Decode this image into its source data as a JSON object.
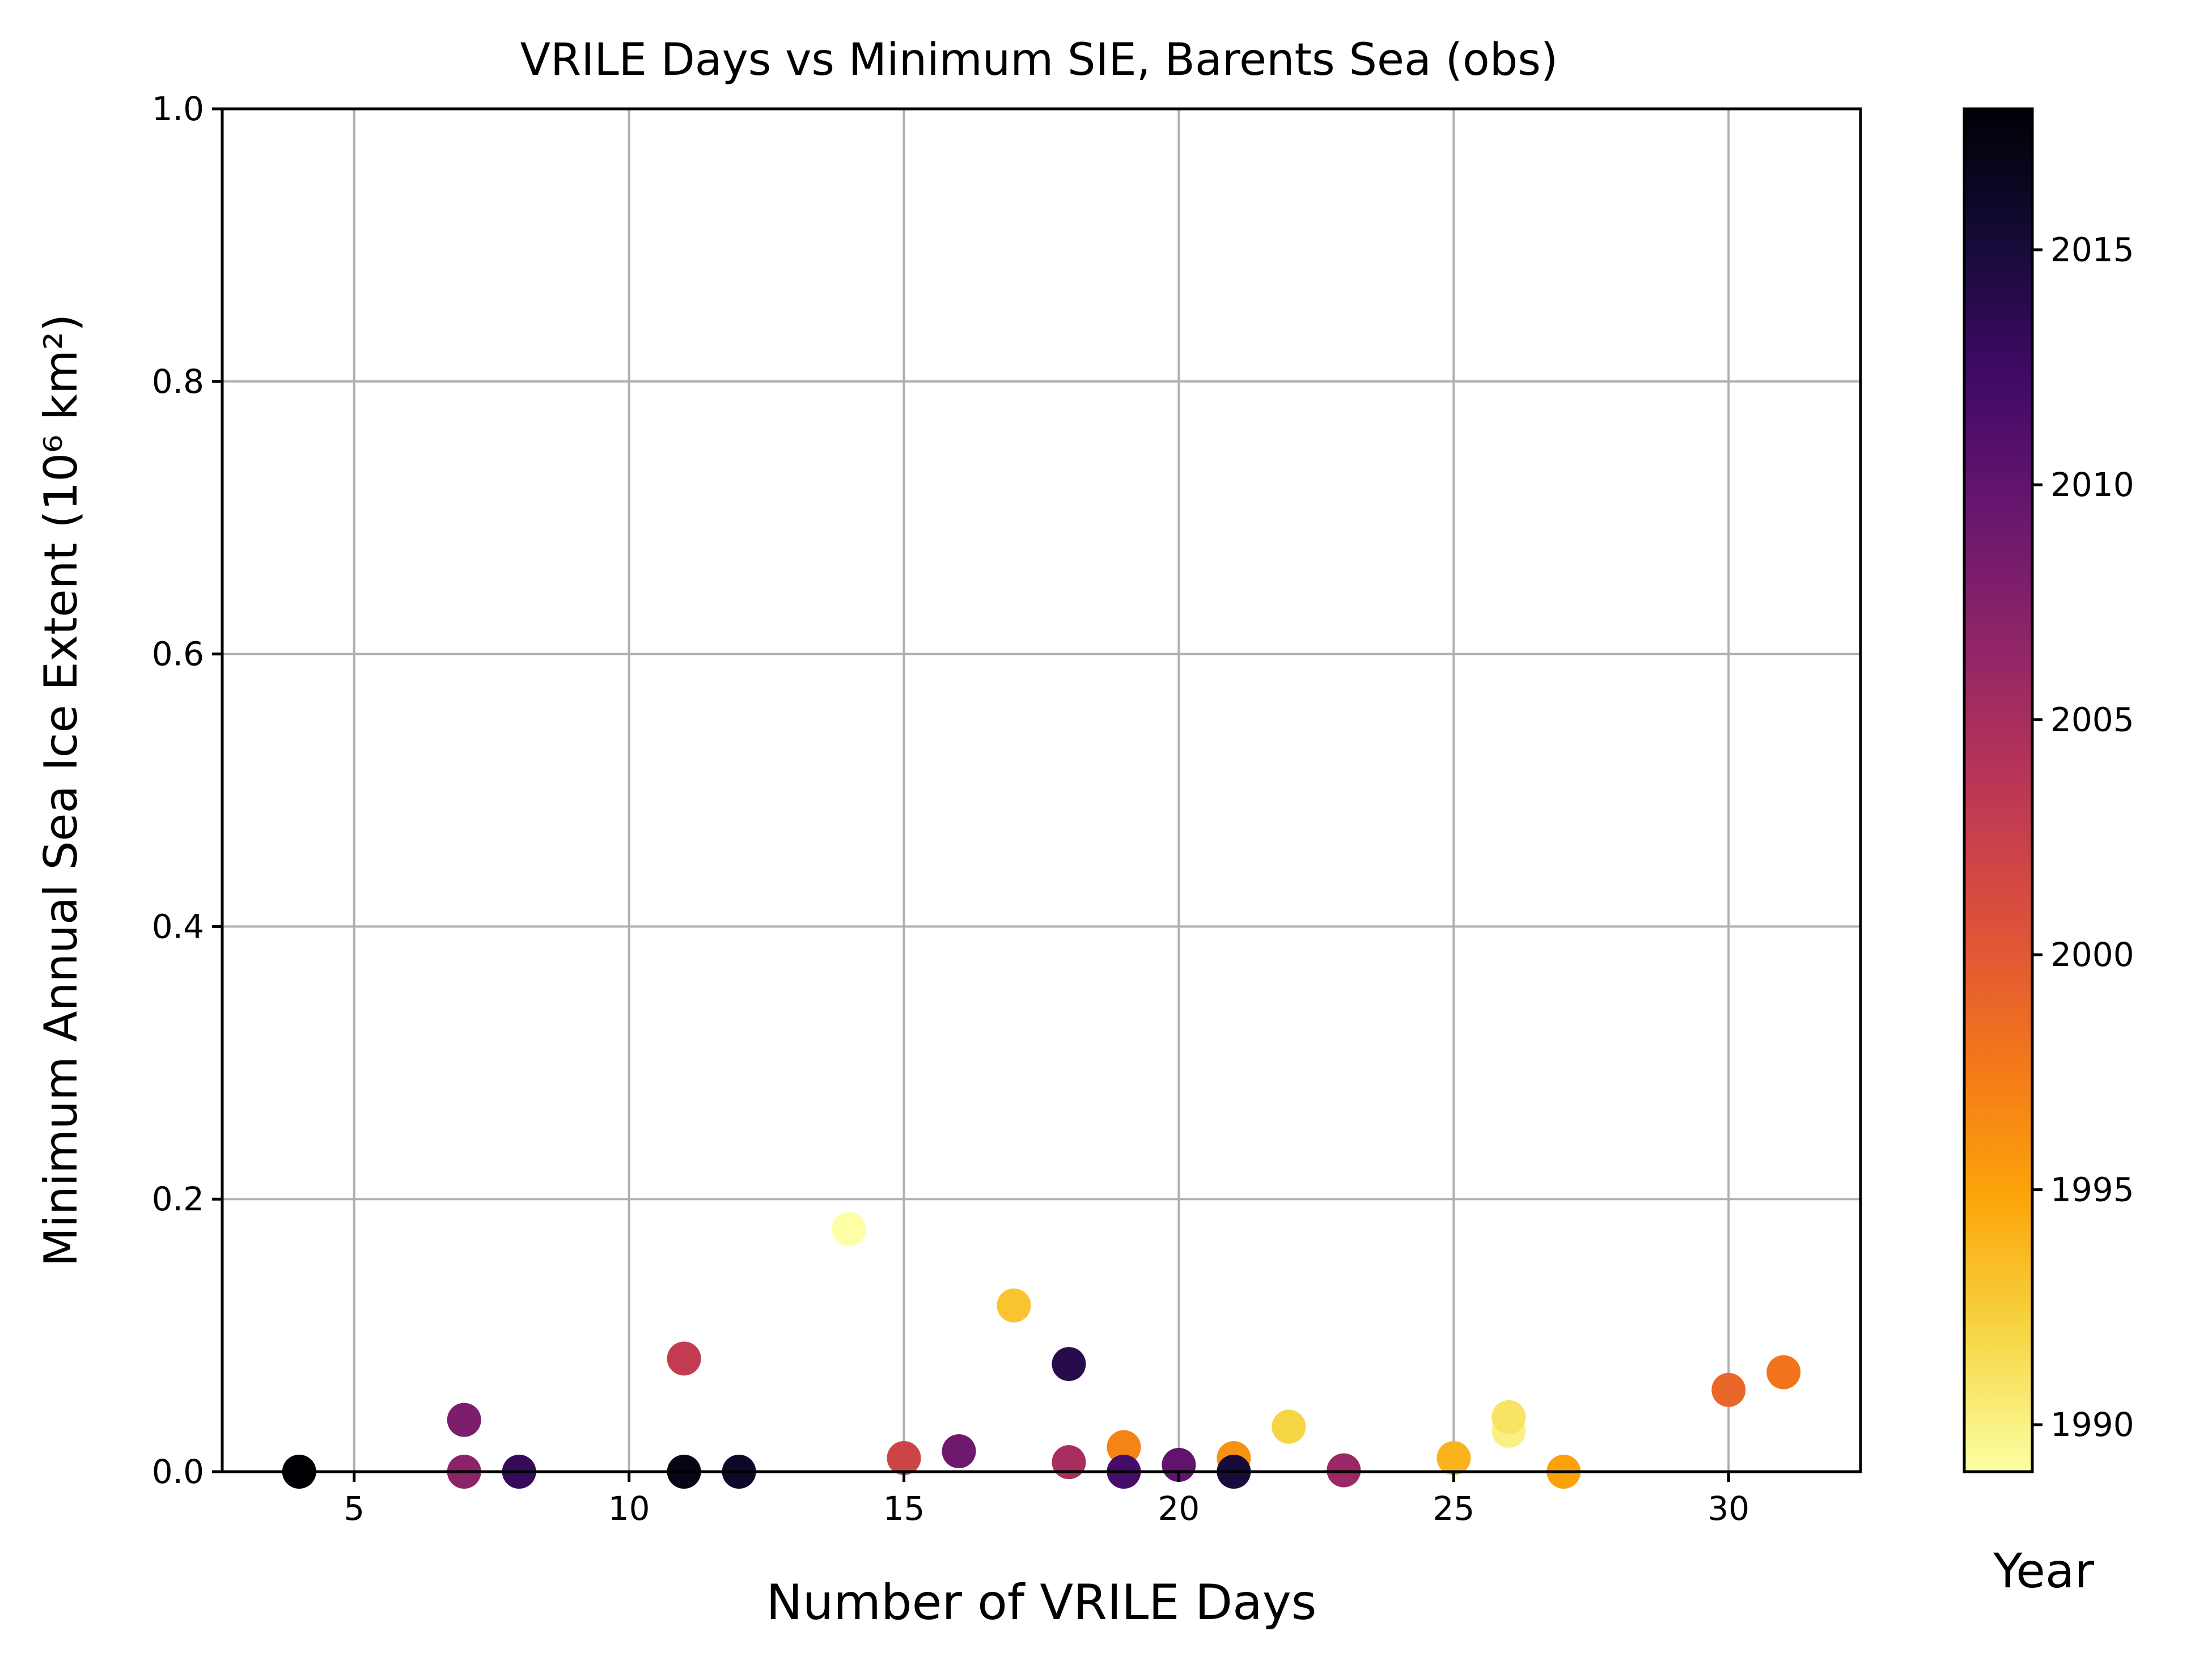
{
  "chart_data": {
    "type": "scatter",
    "title": "VRILE Days vs Minimum SIE, Barents Sea (obs)",
    "xlabel": "Number of VRILE Days",
    "ylabel": "Minimum Annual Sea Ice Extent (10⁶ km²)",
    "xlim": [
      2.6,
      32.4
    ],
    "ylim": [
      0.0,
      1.0
    ],
    "xticks": [
      5,
      10,
      15,
      20,
      25,
      30
    ],
    "xtick_labels": [
      "5",
      "10",
      "15",
      "20",
      "25",
      "30"
    ],
    "yticks": [
      0.0,
      0.2,
      0.4,
      0.6,
      0.8,
      1.0
    ],
    "ytick_labels": [
      "0.0",
      "0.2",
      "0.4",
      "0.6",
      "0.8",
      "1.0"
    ],
    "grid": true,
    "colorbar": {
      "label": "Year",
      "colormap": "inferno_r",
      "range": [
        1989,
        2018
      ],
      "ticks": [
        1990,
        1995,
        2000,
        2005,
        2010,
        2015
      ],
      "tick_labels": [
        "1990",
        "1995",
        "2000",
        "2005",
        "2010",
        "2015"
      ]
    },
    "points": [
      {
        "x": 14,
        "y": 0.178,
        "year": 1989
      },
      {
        "x": 26,
        "y": 0.03,
        "year": 1990
      },
      {
        "x": 26,
        "y": 0.04,
        "year": 1991
      },
      {
        "x": 22,
        "y": 0.033,
        "year": 1992
      },
      {
        "x": 17,
        "y": 0.122,
        "year": 1993
      },
      {
        "x": 25,
        "y": 0.01,
        "year": 1994
      },
      {
        "x": 27,
        "y": 0.0,
        "year": 1995
      },
      {
        "x": 21,
        "y": 0.01,
        "year": 1996
      },
      {
        "x": 19,
        "y": 0.018,
        "year": 1997
      },
      {
        "x": 31,
        "y": 0.073,
        "year": 1998
      },
      {
        "x": 30,
        "y": 0.06,
        "year": 1999
      },
      {
        "x": 15,
        "y": 0.01,
        "year": 2002
      },
      {
        "x": 11,
        "y": 0.083,
        "year": 2003
      },
      {
        "x": 18,
        "y": 0.007,
        "year": 2005
      },
      {
        "x": 23,
        "y": 0.001,
        "year": 2006
      },
      {
        "x": 7,
        "y": 0.0,
        "year": 2007
      },
      {
        "x": 7,
        "y": 0.038,
        "year": 2008
      },
      {
        "x": 16,
        "y": 0.015,
        "year": 2009
      },
      {
        "x": 20,
        "y": 0.005,
        "year": 2010
      },
      {
        "x": 19,
        "y": 0.0,
        "year": 2012
      },
      {
        "x": 8,
        "y": 0.0,
        "year": 2013
      },
      {
        "x": 18,
        "y": 0.079,
        "year": 2014
      },
      {
        "x": 21,
        "y": 0.0,
        "year": 2015
      },
      {
        "x": 12,
        "y": 0.0,
        "year": 2016
      },
      {
        "x": 11,
        "y": 0.0,
        "year": 2017
      },
      {
        "x": 4,
        "y": 0.0,
        "year": 2018
      }
    ]
  }
}
